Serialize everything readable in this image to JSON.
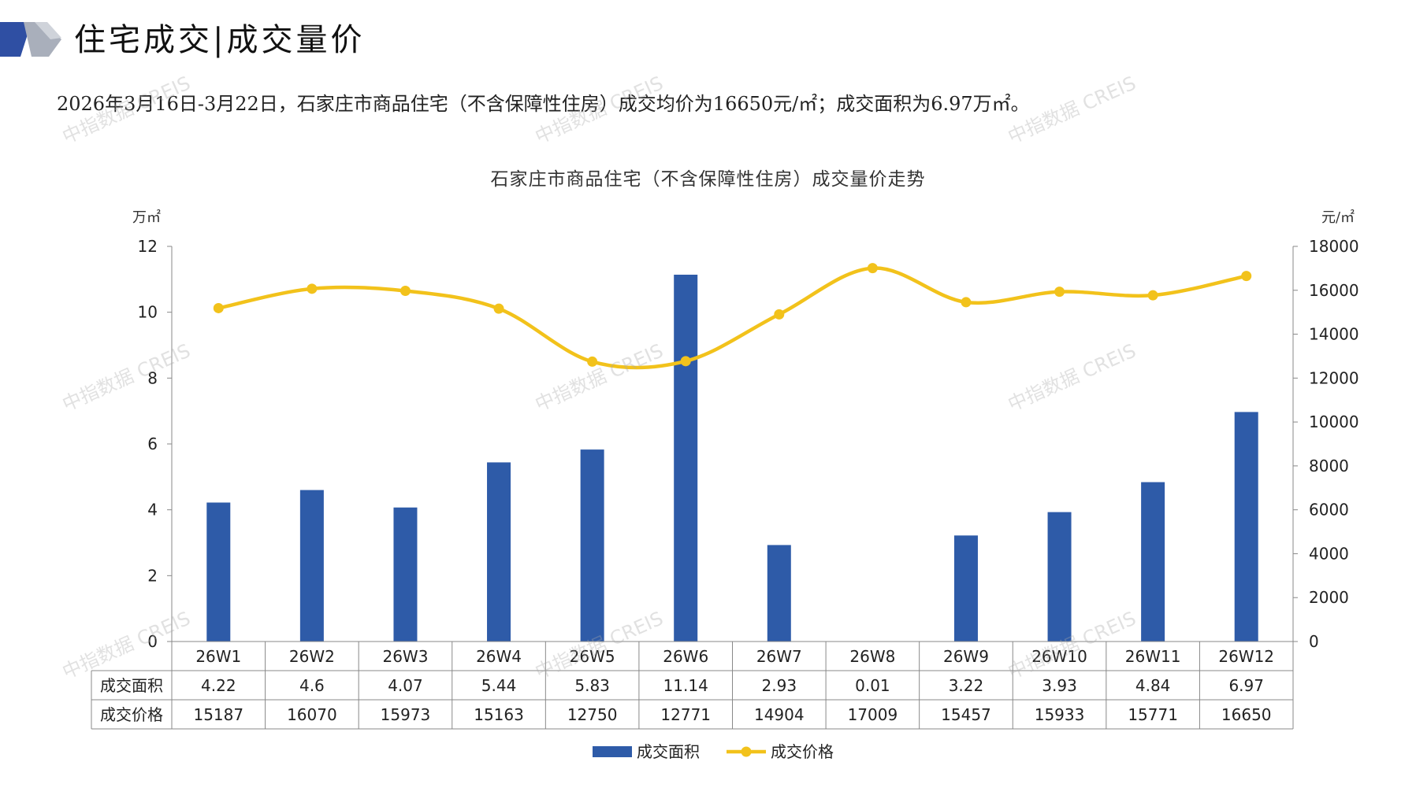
{
  "header": {
    "title": "住宅成交|成交量价",
    "summary": "2026年3月16日-3月22日，石家庄市商品住宅（不含保障性住房）成交均价为16650元/㎡；成交面积为6.97万㎡。"
  },
  "watermark": "中指数据 CREIS",
  "colors": {
    "bar": "#2e5ba8",
    "line": "#f2c21b",
    "accent": "#2f4fa3"
  },
  "chart_data": {
    "type": "bar",
    "title": "石家庄市商品住宅（不含保障性住房）成交量价走势",
    "categories": [
      "26W1",
      "26W2",
      "26W3",
      "26W4",
      "26W5",
      "26W6",
      "26W7",
      "26W8",
      "26W9",
      "26W10",
      "26W11",
      "26W12"
    ],
    "series": [
      {
        "name": "成交面积",
        "type": "bar",
        "axis": "left",
        "values": [
          4.22,
          4.6,
          4.07,
          5.44,
          5.83,
          11.14,
          2.93,
          0.01,
          3.22,
          3.93,
          4.84,
          6.97
        ]
      },
      {
        "name": "成交价格",
        "type": "line",
        "axis": "right",
        "values": [
          15187,
          16070,
          15973,
          15163,
          12750,
          12771,
          14904,
          17009,
          15457,
          15933,
          15771,
          16650
        ]
      }
    ],
    "table_row_labels": [
      "成交面积",
      "成交价格"
    ],
    "table_values": [
      [
        "4.22",
        "4.6",
        "4.07",
        "5.44",
        "5.83",
        "11.14",
        "2.93",
        "0.01",
        "3.22",
        "3.93",
        "4.84",
        "6.97"
      ],
      [
        "15187",
        "16070",
        "15973",
        "15163",
        "12750",
        "12771",
        "14904",
        "17009",
        "15457",
        "15933",
        "15771",
        "16650"
      ]
    ],
    "y_left": {
      "unit": "万㎡",
      "ylim": [
        0,
        12
      ],
      "ticks": [
        "0",
        "2",
        "4",
        "6",
        "8",
        "10",
        "12"
      ]
    },
    "y_right": {
      "unit": "元/㎡",
      "ylim": [
        0,
        18000
      ],
      "ticks": [
        "0",
        "2000",
        "4000",
        "6000",
        "8000",
        "10000",
        "12000",
        "14000",
        "16000",
        "18000"
      ]
    },
    "legend": [
      "成交面积",
      "成交价格"
    ],
    "legend_position": "bottom",
    "grid": false
  }
}
